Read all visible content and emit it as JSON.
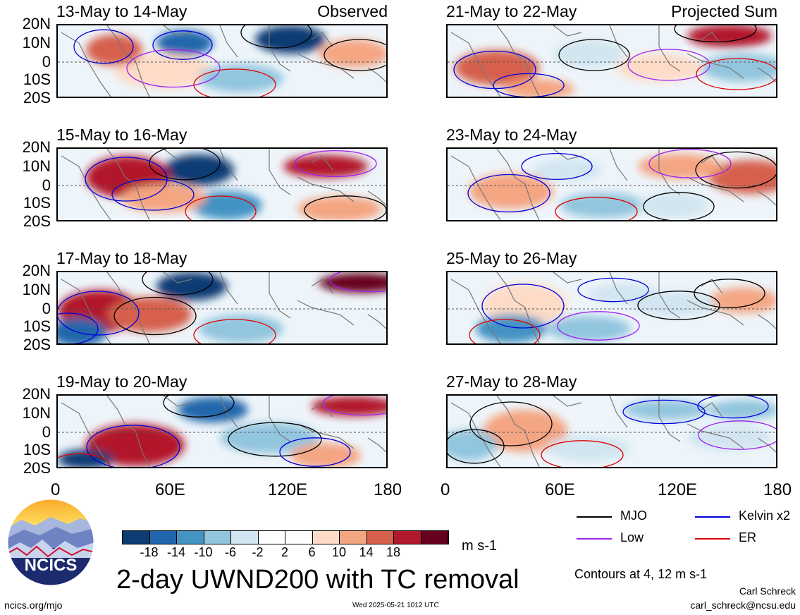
{
  "panels": [
    {
      "date": "13-May to 14-May",
      "corner": "Observed",
      "col": 0,
      "row": 0
    },
    {
      "date": "15-May to 16-May",
      "corner": "",
      "col": 0,
      "row": 1
    },
    {
      "date": "17-May to 18-May",
      "corner": "",
      "col": 0,
      "row": 2
    },
    {
      "date": "19-May to 20-May",
      "corner": "",
      "col": 0,
      "row": 3
    },
    {
      "date": "21-May to 22-May",
      "corner": "Projected Sum",
      "col": 1,
      "row": 0
    },
    {
      "date": "23-May to 24-May",
      "corner": "",
      "col": 1,
      "row": 1
    },
    {
      "date": "25-May to 26-May",
      "corner": "",
      "col": 1,
      "row": 2
    },
    {
      "date": "27-May to 28-May",
      "corner": "",
      "col": 1,
      "row": 3
    }
  ],
  "lat_labels": [
    "20N",
    "10N",
    "0",
    "10S",
    "20S"
  ],
  "lon_labels": [
    "0",
    "60E",
    "120E",
    "180"
  ],
  "colorbar": {
    "colors": [
      "#0d3b73",
      "#2166ac",
      "#4393c3",
      "#92c5de",
      "#d1e5f0",
      "#ffffff",
      "#ffffff",
      "#fddbc7",
      "#f4a582",
      "#d6604d",
      "#b2182b",
      "#67001f"
    ],
    "ticks": [
      "-18",
      "-14",
      "-10",
      "-6",
      "-2",
      "2",
      "6",
      "10",
      "14",
      "18"
    ],
    "units": "m s-1"
  },
  "legend": [
    {
      "label": "MJO",
      "color": "#000000"
    },
    {
      "label": "Kelvin x2",
      "color": "#0000dd"
    },
    {
      "label": "Low",
      "color": "#a020f0"
    },
    {
      "label": "ER",
      "color": "#dd0000"
    }
  ],
  "title": "2-day UWND200 with TC removal",
  "contour_note": "Contours at 4, 12 m s-1",
  "logo_text": "NCICS",
  "footer": {
    "url": "ncics.org/mjo",
    "timestamp": "Wed 2025-05-21 1012 UTC",
    "author": "Carl Schreck",
    "email": "carl_schreck@ncsu.edu"
  }
}
